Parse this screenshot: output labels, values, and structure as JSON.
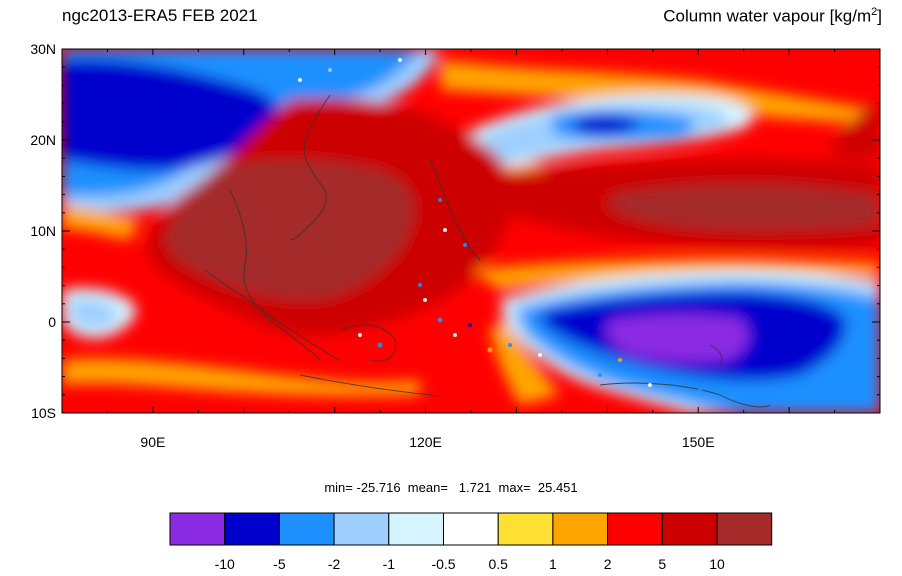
{
  "title": {
    "left": "ngc2013-ERA5  FEB 2021",
    "right_main": "Column water vapour [kg/m",
    "right_sup": "2",
    "right_tail": "]"
  },
  "map": {
    "lat_labels": [
      "30N",
      "20N",
      "10N",
      "0",
      "10S"
    ],
    "lon_labels": [
      "90E",
      "120E",
      "150E"
    ],
    "lon_range": [
      80,
      170
    ],
    "lat_range": [
      -10,
      30
    ]
  },
  "stats": {
    "text": "min= -25.716  mean=   1.721  max=  25.451"
  },
  "colorbar": {
    "colors": [
      "#8b2be2",
      "#0000cd",
      "#1e90ff",
      "#9fcfff",
      "#d6f4ff",
      "#ffffff",
      "#ffe033",
      "#ffa500",
      "#ff0000",
      "#cd0000",
      "#a52a2a"
    ],
    "labels": [
      "-10",
      "-5",
      "-2",
      "-1",
      "-0.5",
      "0.5",
      "1",
      "2",
      "5",
      "10"
    ]
  }
}
